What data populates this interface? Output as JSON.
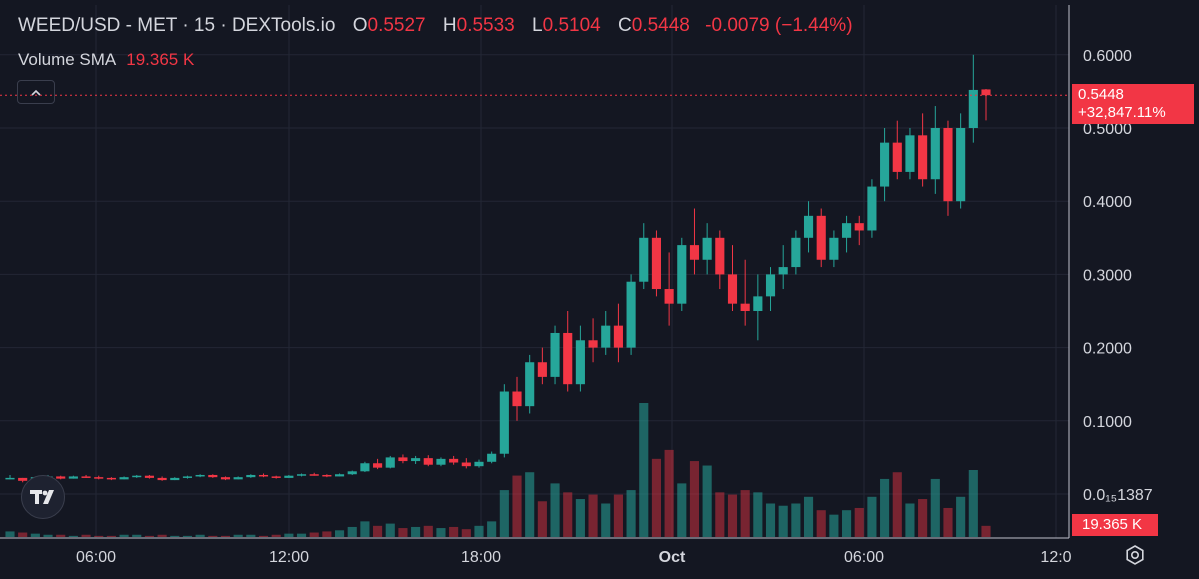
{
  "legend": {
    "symbol": "WEED/USD - MET · 15 · DEXTools.io",
    "open_label": "O",
    "open": "0.5527",
    "high_label": "H",
    "high": "0.5533",
    "low_label": "L",
    "low": "0.5104",
    "close_label": "C",
    "close": "0.5448",
    "change": "-0.0079 (−1.44%)"
  },
  "volume_legend": {
    "label": "Volume SMA",
    "value": "19.365 K"
  },
  "price_tag": {
    "price": "0.5448",
    "percent": "+32,847.11%"
  },
  "volume_tag": "19.365 K",
  "icons": {
    "collapse": "chevron-up-icon",
    "logo": "tradingview-logo-icon",
    "settings": "gear-icon"
  },
  "colors": {
    "up": "#26a69a",
    "down": "#f23645",
    "background": "#141722",
    "grid": "#232735"
  },
  "chart_data": {
    "type": "candlestick",
    "y_ticks": [
      "0.6000",
      "0.5000",
      "0.4000",
      "0.3000",
      "0.2000",
      "0.1000",
      "0.0₁₅1387"
    ],
    "y_tick_values": [
      0.6,
      0.5,
      0.4,
      0.3,
      0.2,
      0.1,
      0.0
    ],
    "x_ticks": [
      "06:00",
      "12:00",
      "18:00",
      "Oct",
      "06:00",
      "12:0"
    ],
    "ylim": [
      -0.03,
      0.66
    ],
    "grid": true,
    "last_price": 0.5448,
    "candles": [
      [
        0.02,
        0.026,
        0.02,
        0.022
      ],
      [
        0.022,
        0.022,
        0.016,
        0.018
      ],
      [
        0.018,
        0.024,
        0.018,
        0.023
      ],
      [
        0.023,
        0.026,
        0.022,
        0.024
      ],
      [
        0.024,
        0.025,
        0.02,
        0.021
      ],
      [
        0.021,
        0.025,
        0.021,
        0.024
      ],
      [
        0.024,
        0.026,
        0.022,
        0.023
      ],
      [
        0.023,
        0.025,
        0.02,
        0.022
      ],
      [
        0.022,
        0.023,
        0.019,
        0.02
      ],
      [
        0.02,
        0.024,
        0.02,
        0.023
      ],
      [
        0.023,
        0.026,
        0.022,
        0.025
      ],
      [
        0.025,
        0.026,
        0.021,
        0.022
      ],
      [
        0.022,
        0.024,
        0.018,
        0.019
      ],
      [
        0.019,
        0.023,
        0.019,
        0.022
      ],
      [
        0.022,
        0.025,
        0.021,
        0.024
      ],
      [
        0.024,
        0.027,
        0.023,
        0.026
      ],
      [
        0.026,
        0.027,
        0.022,
        0.023
      ],
      [
        0.023,
        0.024,
        0.019,
        0.02
      ],
      [
        0.02,
        0.024,
        0.02,
        0.023
      ],
      [
        0.023,
        0.027,
        0.022,
        0.026
      ],
      [
        0.026,
        0.028,
        0.023,
        0.024
      ],
      [
        0.024,
        0.025,
        0.021,
        0.022
      ],
      [
        0.022,
        0.026,
        0.022,
        0.025
      ],
      [
        0.025,
        0.028,
        0.024,
        0.027
      ],
      [
        0.027,
        0.029,
        0.025,
        0.026
      ],
      [
        0.026,
        0.027,
        0.023,
        0.024
      ],
      [
        0.024,
        0.028,
        0.024,
        0.027
      ],
      [
        0.027,
        0.032,
        0.026,
        0.031
      ],
      [
        0.031,
        0.044,
        0.03,
        0.042
      ],
      [
        0.042,
        0.048,
        0.034,
        0.036
      ],
      [
        0.036,
        0.052,
        0.035,
        0.05
      ],
      [
        0.05,
        0.054,
        0.042,
        0.045
      ],
      [
        0.045,
        0.052,
        0.041,
        0.049
      ],
      [
        0.049,
        0.053,
        0.038,
        0.04
      ],
      [
        0.04,
        0.05,
        0.038,
        0.048
      ],
      [
        0.048,
        0.052,
        0.04,
        0.043
      ],
      [
        0.043,
        0.049,
        0.035,
        0.038
      ],
      [
        0.038,
        0.047,
        0.036,
        0.044
      ],
      [
        0.044,
        0.058,
        0.042,
        0.055
      ],
      [
        0.055,
        0.15,
        0.05,
        0.14
      ],
      [
        0.14,
        0.16,
        0.1,
        0.12
      ],
      [
        0.12,
        0.19,
        0.11,
        0.18
      ],
      [
        0.18,
        0.2,
        0.15,
        0.16
      ],
      [
        0.16,
        0.23,
        0.15,
        0.22
      ],
      [
        0.22,
        0.25,
        0.14,
        0.15
      ],
      [
        0.15,
        0.23,
        0.14,
        0.21
      ],
      [
        0.21,
        0.24,
        0.18,
        0.2
      ],
      [
        0.2,
        0.25,
        0.19,
        0.23
      ],
      [
        0.23,
        0.26,
        0.18,
        0.2
      ],
      [
        0.2,
        0.3,
        0.19,
        0.29
      ],
      [
        0.29,
        0.37,
        0.28,
        0.35
      ],
      [
        0.35,
        0.36,
        0.27,
        0.28
      ],
      [
        0.28,
        0.33,
        0.23,
        0.26
      ],
      [
        0.26,
        0.35,
        0.25,
        0.34
      ],
      [
        0.34,
        0.39,
        0.3,
        0.32
      ],
      [
        0.32,
        0.37,
        0.3,
        0.35
      ],
      [
        0.35,
        0.36,
        0.28,
        0.3
      ],
      [
        0.3,
        0.34,
        0.25,
        0.26
      ],
      [
        0.26,
        0.32,
        0.23,
        0.25
      ],
      [
        0.25,
        0.3,
        0.21,
        0.27
      ],
      [
        0.27,
        0.31,
        0.25,
        0.3
      ],
      [
        0.3,
        0.34,
        0.28,
        0.31
      ],
      [
        0.31,
        0.36,
        0.3,
        0.35
      ],
      [
        0.35,
        0.4,
        0.33,
        0.38
      ],
      [
        0.38,
        0.39,
        0.31,
        0.32
      ],
      [
        0.32,
        0.36,
        0.31,
        0.35
      ],
      [
        0.35,
        0.38,
        0.33,
        0.37
      ],
      [
        0.37,
        0.38,
        0.34,
        0.36
      ],
      [
        0.36,
        0.43,
        0.35,
        0.42
      ],
      [
        0.42,
        0.5,
        0.4,
        0.48
      ],
      [
        0.48,
        0.51,
        0.43,
        0.44
      ],
      [
        0.44,
        0.5,
        0.43,
        0.49
      ],
      [
        0.49,
        0.52,
        0.42,
        0.43
      ],
      [
        0.43,
        0.53,
        0.41,
        0.5
      ],
      [
        0.5,
        0.51,
        0.38,
        0.4
      ],
      [
        0.4,
        0.52,
        0.39,
        0.5
      ],
      [
        0.5,
        0.6,
        0.48,
        0.552
      ],
      [
        0.5527,
        0.5533,
        0.5104,
        0.5448
      ]
    ],
    "volume": [
      5,
      4,
      3,
      2,
      2,
      1,
      2,
      1,
      1,
      2,
      2,
      1,
      2,
      1,
      1,
      2,
      1,
      1,
      2,
      2,
      1,
      2,
      3,
      3,
      4,
      5,
      6,
      9,
      14,
      10,
      12,
      8,
      9,
      10,
      8,
      9,
      7,
      10,
      14,
      42,
      55,
      58,
      32,
      48,
      40,
      34,
      38,
      30,
      38,
      42,
      120,
      70,
      78,
      48,
      68,
      64,
      40,
      38,
      42,
      40,
      30,
      28,
      30,
      36,
      24,
      20,
      24,
      26,
      36,
      52,
      58,
      30,
      34,
      52,
      26,
      36,
      60,
      10
    ]
  }
}
